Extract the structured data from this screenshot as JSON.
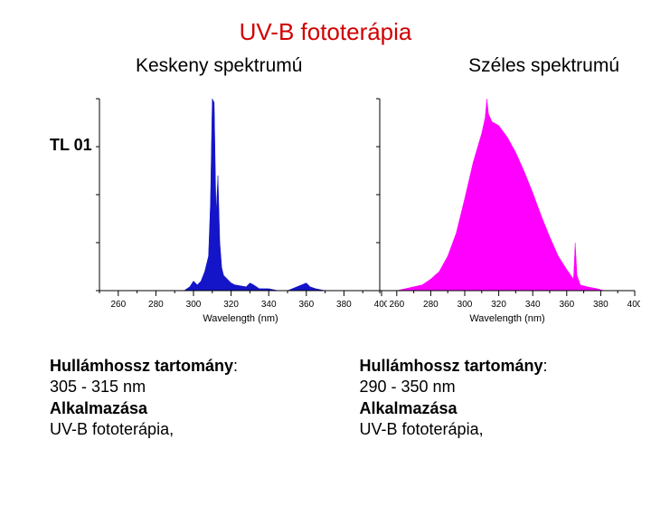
{
  "title": "UV-B fototerápia",
  "title_fontsize": 26,
  "subtitle_left": "Keskeny spektrumú",
  "subtitle_right": "Széles spektrumú",
  "subtitle_fontsize": 21,
  "label_tl01": "TL 01",
  "label_fontsize": 18,
  "chart_left": {
    "type": "area",
    "color": "#1414c8",
    "background": "#ffffff",
    "axis_color": "#000000",
    "xlabel": "Wavelength (nm)",
    "xlabel_fontsize": 11,
    "tick_fontsize": 10,
    "minor_tick_step": 10,
    "xlim": [
      250,
      400
    ],
    "xticks": [
      260,
      280,
      300,
      320,
      340,
      360,
      380,
      400
    ],
    "data": [
      [
        250,
        0
      ],
      [
        260,
        0
      ],
      [
        270,
        0
      ],
      [
        280,
        0
      ],
      [
        290,
        0
      ],
      [
        295,
        0
      ],
      [
        298,
        2
      ],
      [
        300,
        5
      ],
      [
        302,
        3
      ],
      [
        304,
        5
      ],
      [
        306,
        10
      ],
      [
        308,
        18
      ],
      [
        309,
        45
      ],
      [
        310,
        100
      ],
      [
        311,
        98
      ],
      [
        312,
        40
      ],
      [
        313,
        60
      ],
      [
        314,
        25
      ],
      [
        315,
        12
      ],
      [
        316,
        8
      ],
      [
        318,
        6
      ],
      [
        320,
        4
      ],
      [
        322,
        3
      ],
      [
        328,
        2
      ],
      [
        330,
        4
      ],
      [
        332,
        3
      ],
      [
        335,
        1
      ],
      [
        340,
        1
      ],
      [
        345,
        0
      ],
      [
        350,
        0
      ],
      [
        360,
        4
      ],
      [
        362,
        2
      ],
      [
        365,
        1
      ],
      [
        370,
        0
      ],
      [
        400,
        0
      ]
    ]
  },
  "chart_right": {
    "type": "area",
    "color": "#ff00ff",
    "background": "#ffffff",
    "axis_color": "#000000",
    "xlabel": "Wavelength (nm)",
    "xlabel_fontsize": 11,
    "tick_fontsize": 10,
    "minor_tick_step": 10,
    "xlim": [
      250,
      400
    ],
    "xticks": [
      260,
      280,
      300,
      320,
      340,
      360,
      380,
      400
    ],
    "data": [
      [
        250,
        0
      ],
      [
        260,
        0
      ],
      [
        265,
        1
      ],
      [
        270,
        2
      ],
      [
        275,
        3
      ],
      [
        280,
        6
      ],
      [
        285,
        10
      ],
      [
        290,
        18
      ],
      [
        295,
        30
      ],
      [
        300,
        48
      ],
      [
        305,
        67
      ],
      [
        310,
        82
      ],
      [
        312,
        90
      ],
      [
        313,
        100
      ],
      [
        314,
        92
      ],
      [
        316,
        88
      ],
      [
        320,
        86
      ],
      [
        325,
        80
      ],
      [
        330,
        72
      ],
      [
        335,
        62
      ],
      [
        340,
        51
      ],
      [
        345,
        39
      ],
      [
        350,
        28
      ],
      [
        355,
        18
      ],
      [
        360,
        11
      ],
      [
        364,
        6
      ],
      [
        365,
        25
      ],
      [
        366,
        8
      ],
      [
        368,
        3
      ],
      [
        372,
        2
      ],
      [
        378,
        1
      ],
      [
        382,
        0
      ],
      [
        400,
        0
      ]
    ]
  },
  "desc_left": {
    "range_label": "Hullámhossz tartomány",
    "range_value": "305 - 315 nm",
    "app_label": "Alkalmazása",
    "app_value": "UV-B fototerápia,"
  },
  "desc_right": {
    "range_label": "Hullámhossz tartomány",
    "range_value": "290 - 350 nm",
    "app_label": "Alkalmazása",
    "app_value": "UV-B fototerápia,"
  },
  "desc_fontsize": 18
}
